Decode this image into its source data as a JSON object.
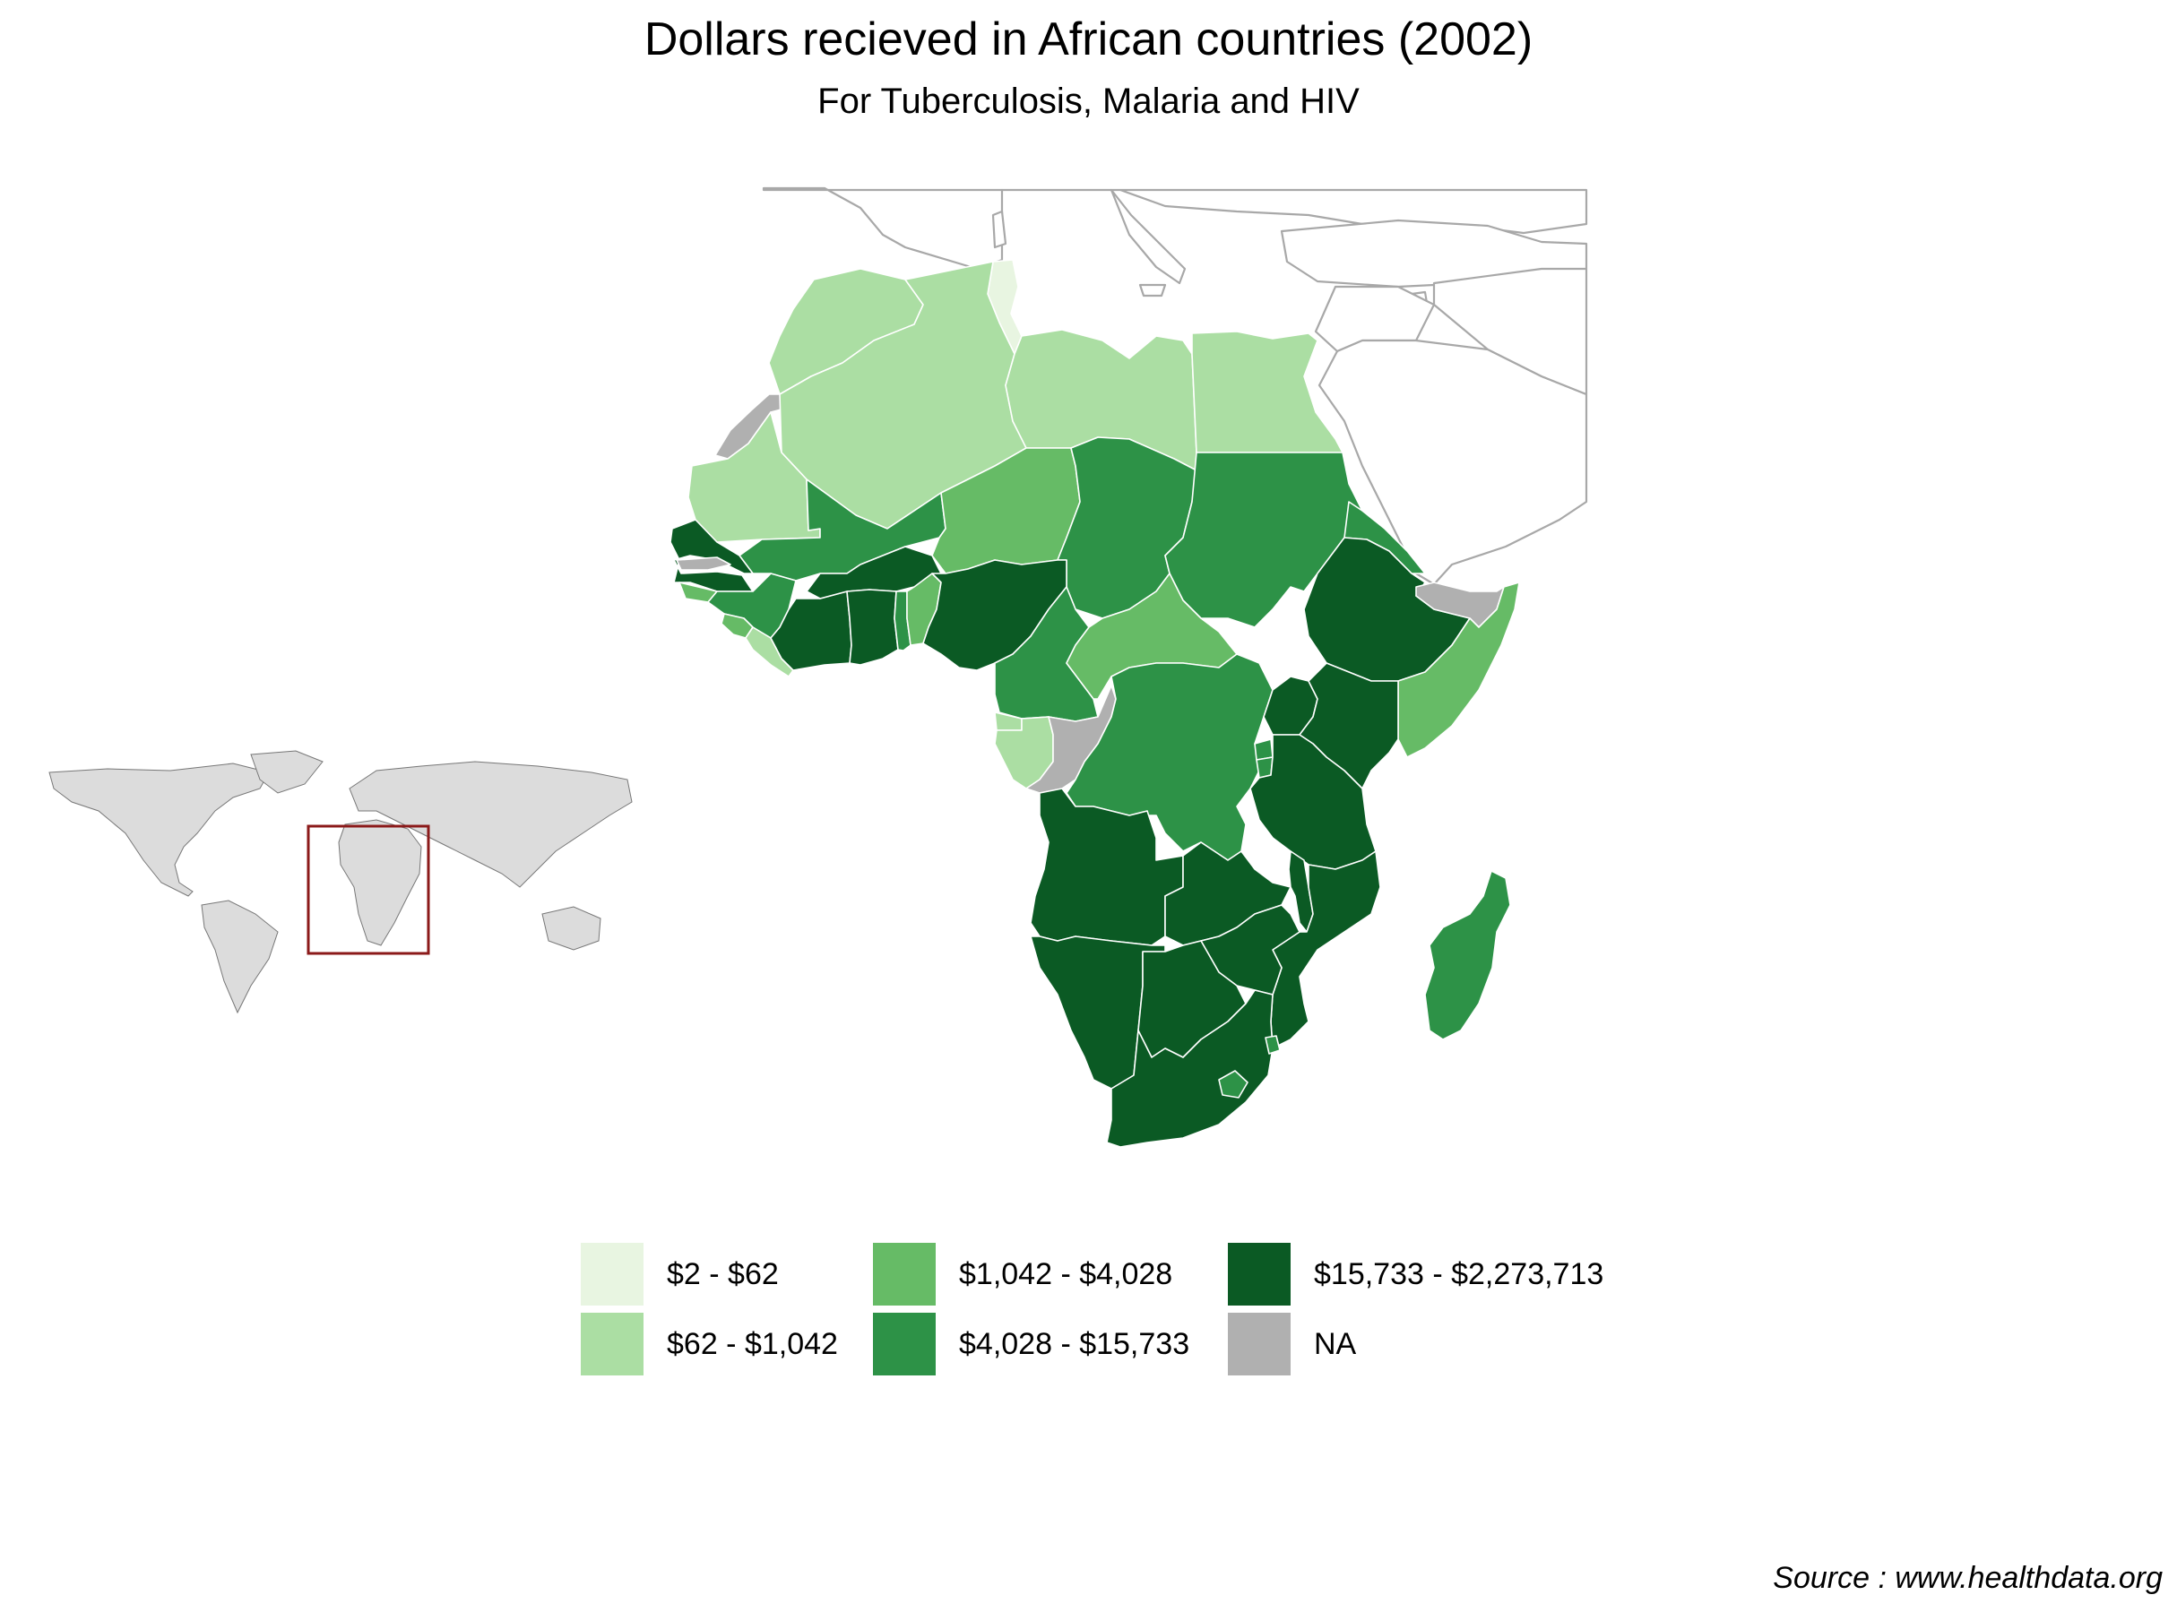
{
  "title": "Dollars recieved in African countries (2002)",
  "subtitle": "For Tuberculosis, Malaria and HIV",
  "source": "Source : www.healthdata.org",
  "colors": {
    "c1": "#e8f5e1",
    "c2": "#abdea3",
    "c3": "#66bb66",
    "c4": "#2d9247",
    "c5": "#0b5a24",
    "na": "#b0b0b0",
    "inset_frame": "#8b1a1a"
  },
  "legend": {
    "items": [
      {
        "label": "$2 - $62",
        "color": "#e8f5e1"
      },
      {
        "label": "$62 - $1,042",
        "color": "#abdea3"
      },
      {
        "label": "$1,042 - $4,028",
        "color": "#66bb66"
      },
      {
        "label": "$4,028 - $15,733",
        "color": "#2d9247"
      },
      {
        "label": "$15,733 - $2,273,713",
        "color": "#0b5a24"
      },
      {
        "label": "NA",
        "color": "#b0b0b0"
      }
    ]
  },
  "map": {
    "regions": [
      {
        "name": "tunisia",
        "bin": "c1"
      },
      {
        "name": "morocco",
        "bin": "c2"
      },
      {
        "name": "algeria",
        "bin": "c2"
      },
      {
        "name": "libya",
        "bin": "c2"
      },
      {
        "name": "egypt",
        "bin": "c2"
      },
      {
        "name": "mauritania",
        "bin": "c2"
      },
      {
        "name": "western-sahara",
        "bin": "na"
      },
      {
        "name": "mali",
        "bin": "c4"
      },
      {
        "name": "niger",
        "bin": "c3"
      },
      {
        "name": "chad",
        "bin": "c4"
      },
      {
        "name": "sudan",
        "bin": "c4"
      },
      {
        "name": "eritrea",
        "bin": "c4"
      },
      {
        "name": "ethiopia",
        "bin": "c5"
      },
      {
        "name": "somaliland",
        "bin": "na"
      },
      {
        "name": "somalia",
        "bin": "c3"
      },
      {
        "name": "senegal",
        "bin": "c5"
      },
      {
        "name": "gambia",
        "bin": "na"
      },
      {
        "name": "guinea-bissau",
        "bin": "c3"
      },
      {
        "name": "guinea",
        "bin": "c4"
      },
      {
        "name": "sierra-leone",
        "bin": "c3"
      },
      {
        "name": "liberia",
        "bin": "c2"
      },
      {
        "name": "cote-divoire",
        "bin": "c5"
      },
      {
        "name": "burkina-faso",
        "bin": "c5"
      },
      {
        "name": "ghana",
        "bin": "c5"
      },
      {
        "name": "togo",
        "bin": "c4"
      },
      {
        "name": "benin",
        "bin": "c3"
      },
      {
        "name": "nigeria",
        "bin": "c5"
      },
      {
        "name": "cameroon",
        "bin": "c4"
      },
      {
        "name": "central-african-republic",
        "bin": "c3"
      },
      {
        "name": "equatorial-guinea",
        "bin": "c2"
      },
      {
        "name": "gabon",
        "bin": "c2"
      },
      {
        "name": "congo",
        "bin": "na"
      },
      {
        "name": "dr-congo",
        "bin": "c4"
      },
      {
        "name": "uganda",
        "bin": "c5"
      },
      {
        "name": "kenya",
        "bin": "c5"
      },
      {
        "name": "rwanda",
        "bin": "c4"
      },
      {
        "name": "burundi",
        "bin": "c4"
      },
      {
        "name": "tanzania",
        "bin": "c5"
      },
      {
        "name": "angola",
        "bin": "c5"
      },
      {
        "name": "zambia",
        "bin": "c5"
      },
      {
        "name": "malawi",
        "bin": "c5"
      },
      {
        "name": "mozambique",
        "bin": "c5"
      },
      {
        "name": "zimbabwe",
        "bin": "c5"
      },
      {
        "name": "namibia",
        "bin": "c5"
      },
      {
        "name": "botswana",
        "bin": "c5"
      },
      {
        "name": "south-africa",
        "bin": "c5"
      },
      {
        "name": "lesotho",
        "bin": "c4"
      },
      {
        "name": "swaziland",
        "bin": "c4"
      },
      {
        "name": "madagascar",
        "bin": "c4"
      }
    ]
  }
}
